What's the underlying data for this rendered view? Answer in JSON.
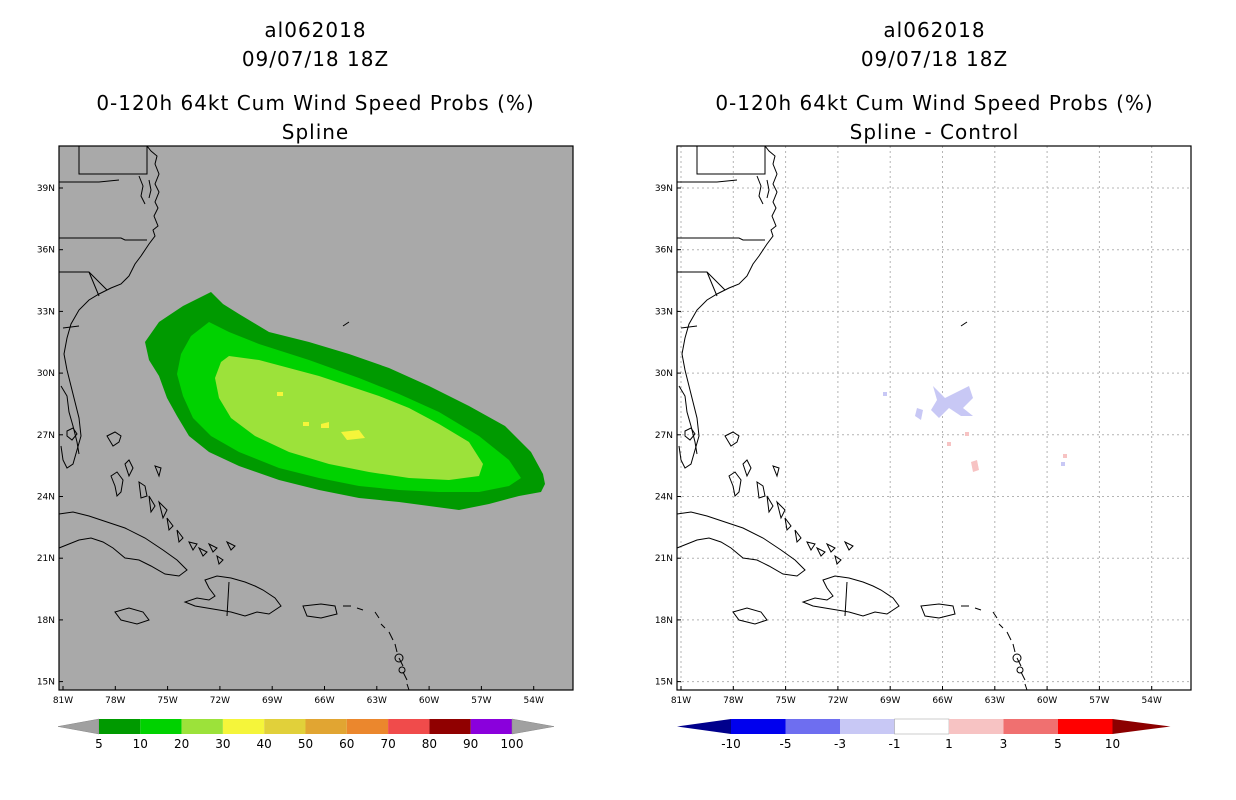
{
  "left_panel": {
    "storm_id": "al062018",
    "datetime": "09/07/18 18Z",
    "product": "0-120h 64kt Cum Wind Speed Probs (%)",
    "subtitle": "Spline",
    "background_color": "#a9a9a9",
    "colorbar": {
      "labels": [
        "5",
        "10",
        "20",
        "30",
        "40",
        "50",
        "60",
        "70",
        "80",
        "90",
        "100"
      ],
      "colors": [
        "#009a00",
        "#00d200",
        "#9ce23a",
        "#f5f53a",
        "#e1d03a",
        "#e1a532",
        "#eb872d",
        "#f04b4b",
        "#900000",
        "#8a00dc"
      ],
      "end_color": "#a0a0a0"
    }
  },
  "right_panel": {
    "storm_id": "al062018",
    "datetime": "09/07/18 18Z",
    "product": "0-120h 64kt Cum Wind Speed Probs (%)",
    "subtitle": "Spline - Control",
    "background_color": "#ffffff",
    "colorbar": {
      "labels": [
        "-10",
        "-5",
        "-3",
        "-1",
        "1",
        "3",
        "5",
        "10"
      ],
      "colors": [
        "#0000ee",
        "#6e6ef0",
        "#c8c8f5",
        "#ffffff",
        "#f7c3c3",
        "#f07070",
        "#ff0000"
      ],
      "end_left_color": "#00008c",
      "end_right_color": "#8c0000"
    }
  },
  "axes": {
    "lon_labels": [
      "81W",
      "78W",
      "75W",
      "72W",
      "69W",
      "66W",
      "63W",
      "60W",
      "57W",
      "54W"
    ],
    "lat_labels": [
      "39N",
      "36N",
      "33N",
      "30N",
      "27N",
      "24N",
      "21N",
      "18N",
      "15N"
    ]
  }
}
